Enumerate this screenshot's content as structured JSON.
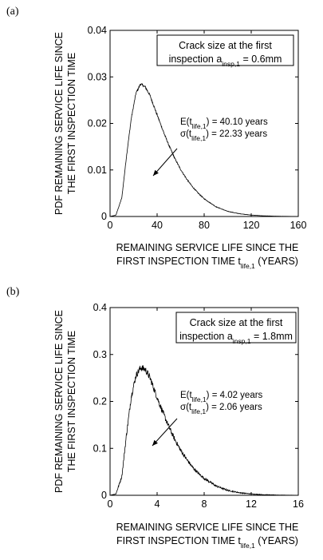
{
  "chart_data": [
    {
      "panel": "(a)",
      "type": "line",
      "ylabel_lines": [
        "PDF REMAINING SERVICE LIFE SINCE",
        "THE FIRST INSPECTION TIME"
      ],
      "xlabel_line1": "REMAINING SERVICE LIFE SINCE THE",
      "xlabel_line2_prefix": "FIRST INSPECTION TIME t",
      "xlabel_line2_sub": "life,1",
      "xlabel_line2_suffix": "  (YEARS)",
      "xlim": [
        0,
        160
      ],
      "ylim": [
        0,
        0.04
      ],
      "xticks": [
        0,
        40,
        80,
        120,
        160
      ],
      "xtick_labels": [
        "0",
        "40",
        "80",
        "120",
        "160"
      ],
      "yticks": [
        0,
        0.01,
        0.02,
        0.03,
        0.04
      ],
      "ytick_labels": [
        "0",
        "0.01",
        "0.02",
        "0.03",
        "0.04"
      ],
      "box_line1": "Crack size at the first",
      "box_line2_prefix": "inspection a",
      "box_line2_sub": "insp,1",
      "box_line2_suffix": " = 0.6mm",
      "mean_prefix": "E(t",
      "mean_sub": "life,1",
      "mean_suffix": ") = 40.10 years",
      "std_prefix": "σ(t",
      "std_sub": "life,1",
      "std_suffix": ") = 22.33 years",
      "series": [
        {
          "x": [
            0,
            5,
            10,
            14,
            18,
            22,
            26,
            30,
            34,
            38,
            42,
            46,
            50,
            55,
            60,
            65,
            70,
            75,
            80,
            90,
            100,
            110,
            120,
            130,
            140,
            150,
            160
          ],
          "y": [
            0,
            0.0003,
            0.004,
            0.013,
            0.021,
            0.0265,
            0.0285,
            0.0278,
            0.026,
            0.0232,
            0.0205,
            0.0178,
            0.0153,
            0.0125,
            0.0101,
            0.0081,
            0.0064,
            0.005,
            0.0038,
            0.0021,
            0.0011,
            0.0006,
            0.0003,
            0.00015,
            7e-05,
            3e-05,
            1e-05
          ]
        }
      ]
    },
    {
      "panel": "(b)",
      "type": "line",
      "ylabel_lines": [
        "PDF REMAINING SERVICE LIFE SINCE",
        "THE FIRST INSPECTION TIME"
      ],
      "xlabel_line1": "REMAINING SERVICE LIFE SINCE THE",
      "xlabel_line2_prefix": "FIRST INSPECTION TIME t",
      "xlabel_line2_sub": "life,1",
      "xlabel_line2_suffix": "  (YEARS)",
      "xlim": [
        0,
        16
      ],
      "ylim": [
        0,
        0.4
      ],
      "xticks": [
        0,
        4,
        8,
        12,
        16
      ],
      "xtick_labels": [
        "0",
        "4",
        "8",
        "12",
        "16"
      ],
      "yticks": [
        0,
        0.1,
        0.2,
        0.3,
        0.4
      ],
      "ytick_labels": [
        "0",
        "0.1",
        "0.2",
        "0.3",
        "0.4"
      ],
      "box_line1": "Crack size at the first",
      "box_line2_prefix": "inspection a",
      "box_line2_sub": "insp,1",
      "box_line2_suffix": " = 1.8mm",
      "mean_prefix": "E(t",
      "mean_sub": "life,1",
      "mean_suffix": ") = 4.02 years",
      "std_prefix": "σ(t",
      "std_sub": "life,1",
      "std_suffix": ") = 2.06 years",
      "series": [
        {
          "x": [
            0,
            0.5,
            1,
            1.4,
            1.8,
            2.2,
            2.6,
            3.0,
            3.4,
            3.8,
            4.2,
            4.6,
            5.0,
            5.5,
            6.0,
            6.5,
            7.0,
            7.5,
            8.0,
            9.0,
            10.0,
            11.0,
            12.0,
            13.0,
            14.0,
            15.0,
            16.0
          ],
          "y": [
            0,
            0.003,
            0.04,
            0.13,
            0.21,
            0.255,
            0.272,
            0.268,
            0.25,
            0.222,
            0.195,
            0.17,
            0.146,
            0.119,
            0.096,
            0.077,
            0.06,
            0.047,
            0.036,
            0.02,
            0.0105,
            0.0055,
            0.0028,
            0.0014,
            0.0007,
            0.0003,
            0.0001
          ]
        }
      ]
    }
  ]
}
